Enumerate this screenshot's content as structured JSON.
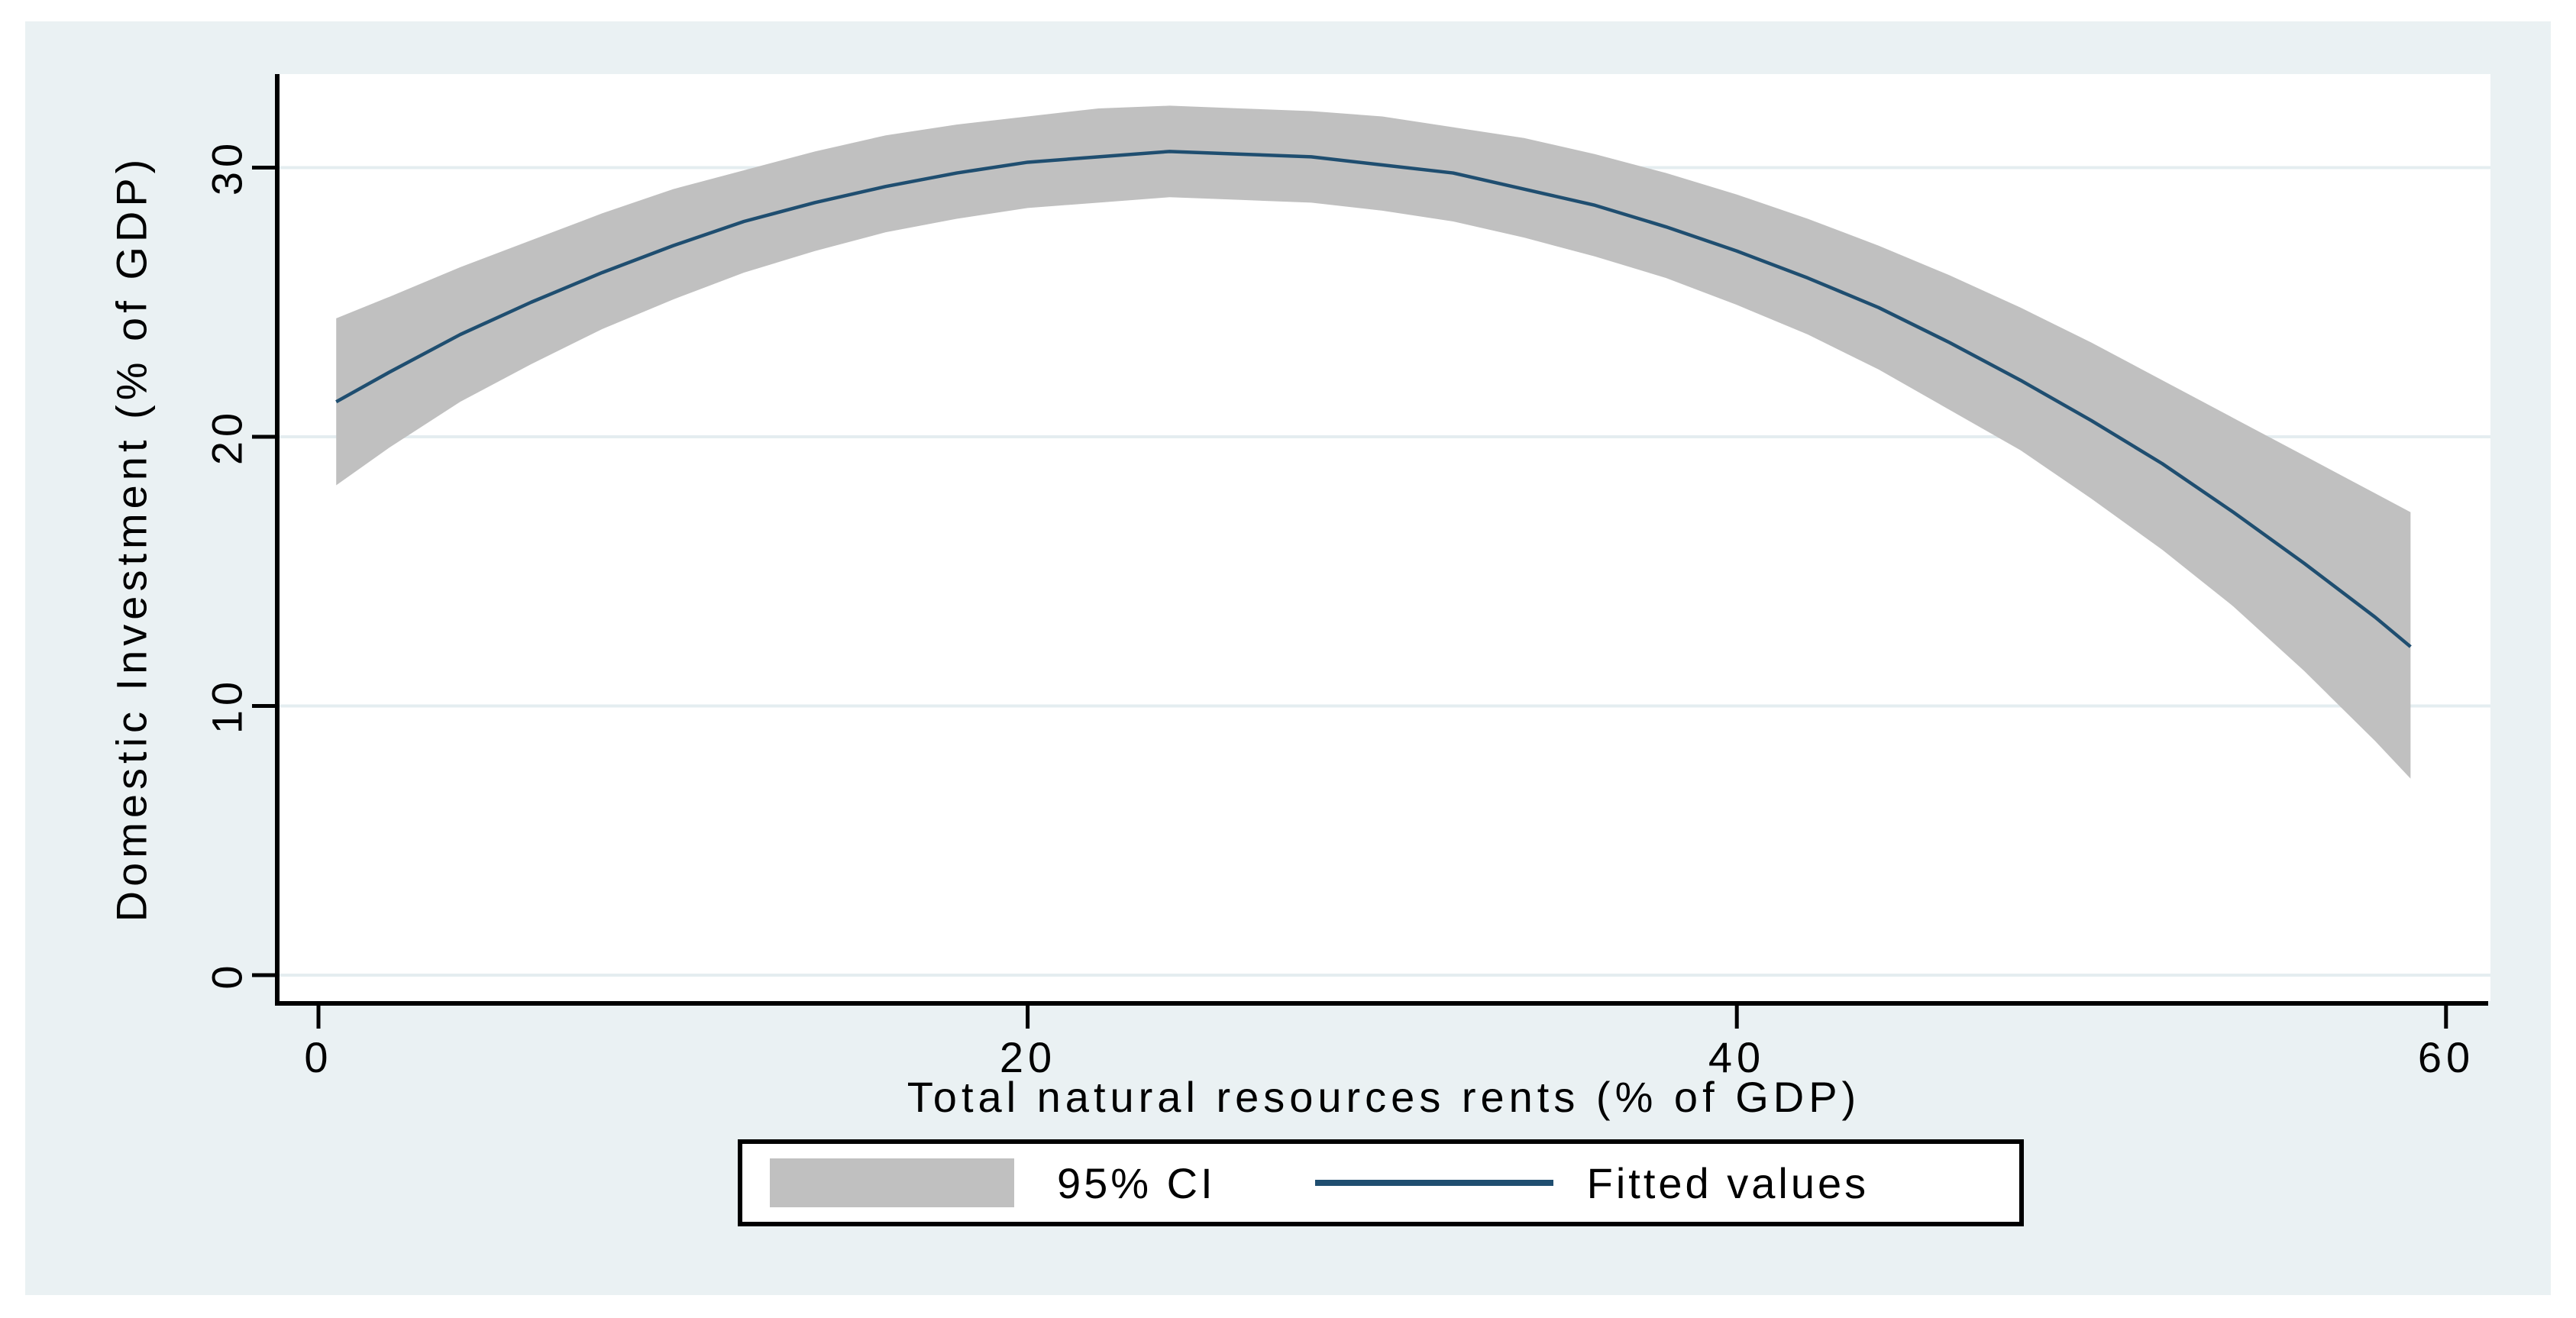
{
  "chart_data": {
    "type": "line",
    "title": "",
    "xlabel": "Total natural resources rents (% of GDP)",
    "ylabel": "Domestic Investment (% of GDP)",
    "x_ticks": [
      0,
      20,
      40,
      60
    ],
    "y_ticks": [
      0,
      10,
      20,
      30
    ],
    "x_tick_labels": [
      "0",
      "20",
      "40",
      "60"
    ],
    "y_tick_labels": [
      "0",
      "10",
      "20",
      "30"
    ],
    "xlim": [
      -1.2,
      61.3
    ],
    "ylim": [
      -1.0,
      33.5
    ],
    "grid": "horizontal gridlines at y ticks",
    "legend_position": "bottom-center",
    "panel_color": "#eaf1f3",
    "plot_background": "#ffffff",
    "gridline_color": "#e4edf0",
    "ci_color": "#c0c0c0",
    "line_color": "#1f4e70",
    "axis_color": "#000000",
    "series": [
      {
        "name": "95% CI",
        "type": "confidence-band",
        "x": [
          0.5,
          2,
          4,
          6,
          8,
          10,
          12,
          14,
          16,
          18,
          20,
          22,
          24,
          26,
          28,
          30,
          32,
          34,
          36,
          38,
          40,
          42,
          44,
          46,
          48,
          50,
          52,
          54,
          56,
          58,
          59
        ],
        "upper": [
          24.4,
          25.2,
          26.3,
          27.3,
          28.3,
          29.2,
          29.9,
          30.6,
          31.2,
          31.6,
          31.9,
          32.2,
          32.3,
          32.2,
          32.1,
          31.9,
          31.5,
          31.1,
          30.5,
          29.8,
          29.0,
          28.1,
          27.1,
          26.0,
          24.8,
          23.5,
          22.1,
          20.7,
          19.3,
          17.9,
          17.2
        ],
        "lower": [
          18.2,
          19.6,
          21.3,
          22.7,
          24.0,
          25.1,
          26.1,
          26.9,
          27.6,
          28.1,
          28.5,
          28.7,
          28.9,
          28.8,
          28.7,
          28.4,
          28.0,
          27.4,
          26.7,
          25.9,
          24.9,
          23.8,
          22.5,
          21.0,
          19.5,
          17.7,
          15.8,
          13.7,
          11.3,
          8.7,
          7.3
        ]
      },
      {
        "name": "Fitted values",
        "type": "line",
        "x": [
          0.5,
          2,
          4,
          6,
          8,
          10,
          12,
          14,
          16,
          18,
          20,
          22,
          24,
          26,
          28,
          30,
          32,
          34,
          36,
          38,
          40,
          42,
          44,
          46,
          48,
          50,
          52,
          54,
          56,
          58,
          59
        ],
        "y": [
          21.3,
          22.4,
          23.8,
          25.0,
          26.1,
          27.1,
          28.0,
          28.7,
          29.3,
          29.8,
          30.2,
          30.4,
          30.6,
          30.5,
          30.4,
          30.1,
          29.8,
          29.2,
          28.6,
          27.8,
          26.9,
          25.9,
          24.8,
          23.5,
          22.1,
          20.6,
          19.0,
          17.2,
          15.3,
          13.3,
          12.2
        ]
      }
    ]
  },
  "legend": {
    "ci_label": "95% CI",
    "fitted_label": "Fitted values"
  }
}
